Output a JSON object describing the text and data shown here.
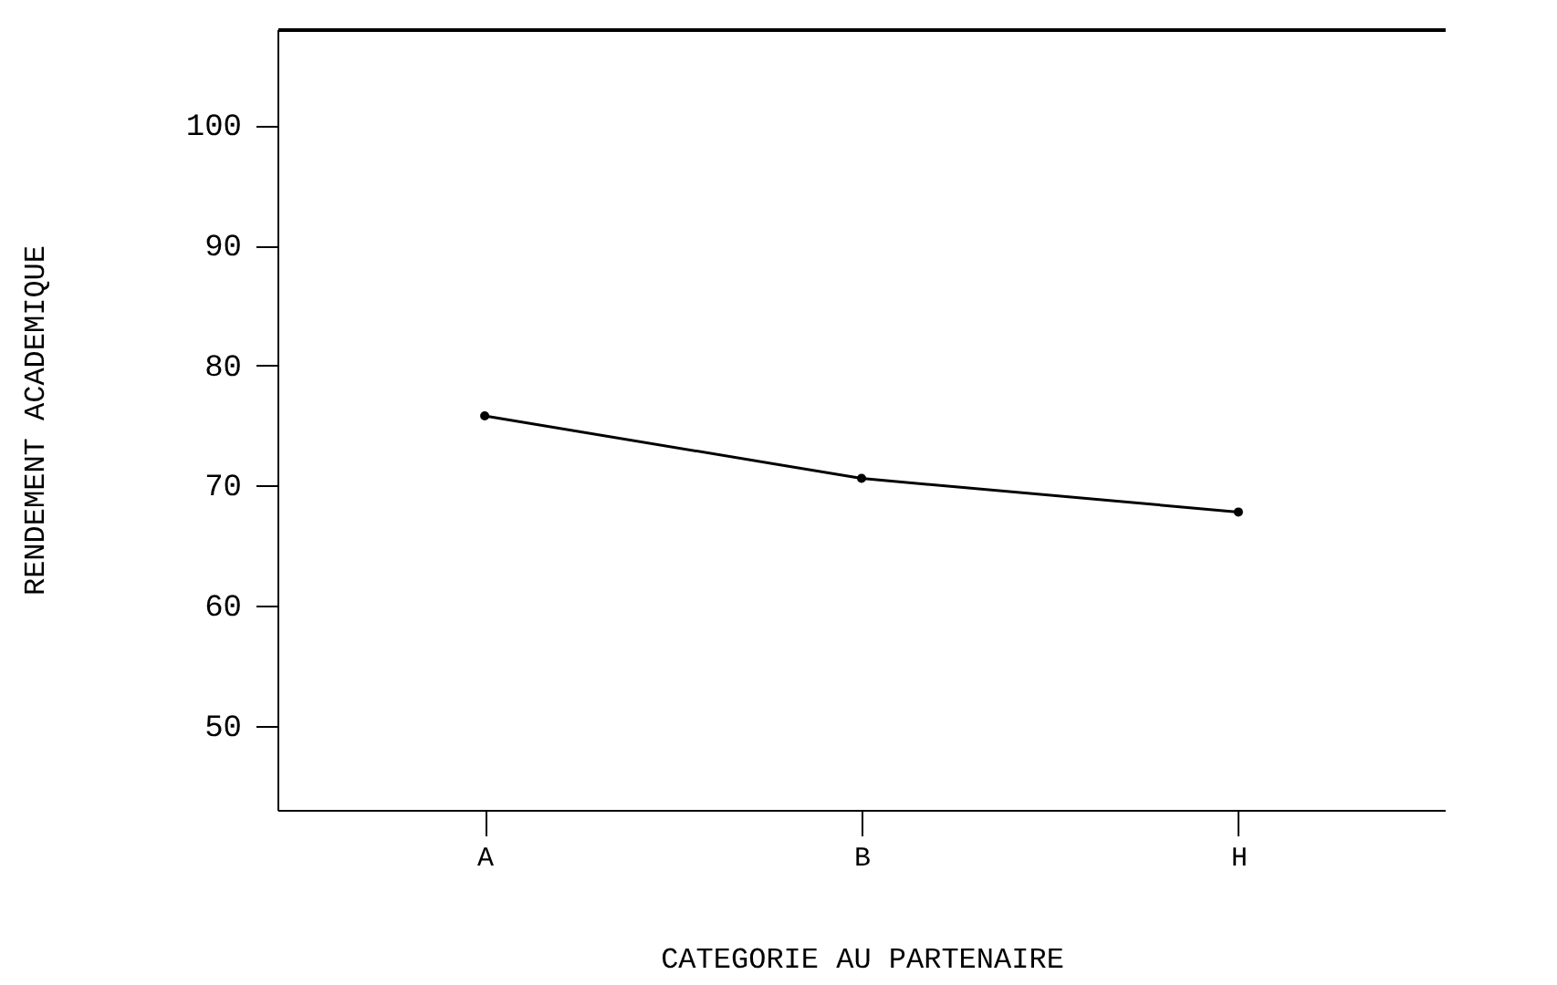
{
  "chart_data": {
    "type": "line",
    "xlabel": "CATEGORIE AU PARTENAIRE",
    "ylabel": "RENDEMENT ACADEMIQUE",
    "categories": [
      "A",
      "B",
      "H"
    ],
    "series": [
      {
        "color": "#000000",
        "values": [
          75.8,
          70.6,
          67.8
        ]
      }
    ],
    "ylim": [
      43,
      108
    ],
    "yticks": [
      50,
      60,
      70,
      80,
      90,
      100
    ],
    "grid": false,
    "marker": "circle",
    "line_style": "solid"
  }
}
